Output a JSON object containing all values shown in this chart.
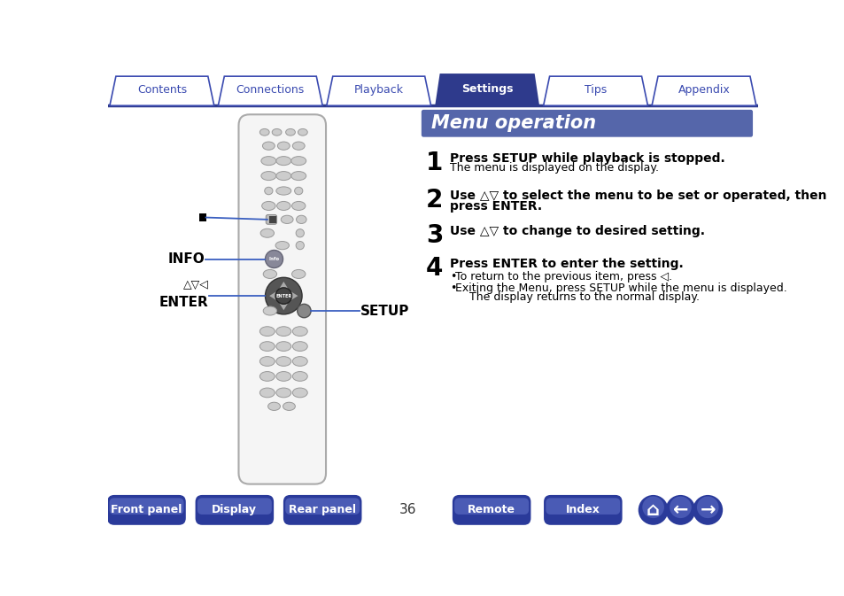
{
  "bg_color": "#ffffff",
  "tab_color_active": "#2e3a8c",
  "tab_color_inactive": "#ffffff",
  "tab_border_color": "#3a4ab0",
  "tab_text_active": "#ffffff",
  "tab_text_inactive": "#3a4ab0",
  "tabs": [
    "Contents",
    "Connections",
    "Playback",
    "Settings",
    "Tips",
    "Appendix"
  ],
  "active_tab": 3,
  "tab_line_color": "#2e3a8c",
  "title_bg": "#5566aa",
  "title_text": "Menu operation",
  "title_text_color": "#ffffff",
  "step1_bold": "Press SETUP while playback is stopped.",
  "step1_normal": "The menu is displayed on the display.",
  "step2_bold": "Use △▽ to select the menu to be set or operated, then\npress ENTER.",
  "step3_bold": "Use △▽ to change to desired setting.",
  "step4_bold": "Press ENTER to enter the setting.",
  "bullet1": "To return to the previous item, press ◁.",
  "bullet2": "Exiting the Menu, press SETUP while the menu is displayed.\n    The display returns to the normal display.",
  "label_info": "INFO",
  "label_setup": "SETUP",
  "bottom_buttons": [
    "Front panel",
    "Display",
    "Rear panel",
    "Remote",
    "Index"
  ],
  "bottom_btn_color_dark": "#2a3a9a",
  "bottom_btn_color_light": "#6677cc",
  "bottom_btn_text": "#ffffff",
  "page_number": "36",
  "content_text_color": "#000000",
  "step_num_color": "#000000",
  "line_color": "#3a5fc0",
  "remote_body": "#f5f5f5",
  "remote_border": "#aaaaaa",
  "btn_oval_color": "#cccccc",
  "btn_oval_border": "#999999",
  "dpad_outer": "#555555",
  "dpad_inner": "#888888",
  "dpad_center": "#444444",
  "info_btn_color": "#888899",
  "setup_btn_color": "#888888"
}
